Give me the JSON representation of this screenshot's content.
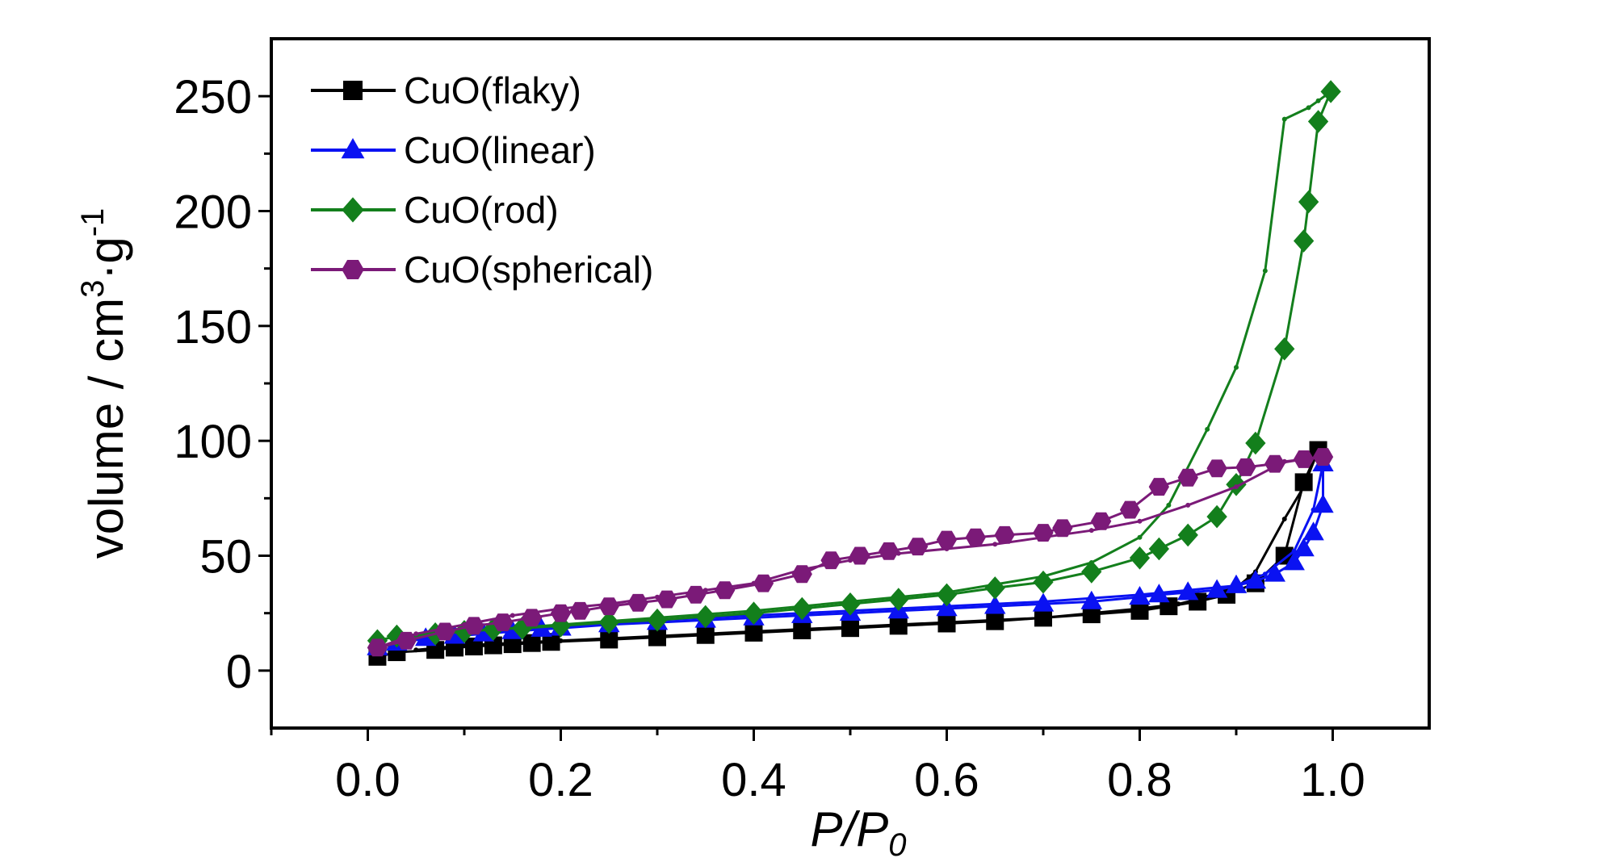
{
  "chart_data": {
    "type": "line",
    "title": "",
    "xlabel": "P/P",
    "xlabel_sub": "0",
    "ylabel": "volume / cm",
    "ylabel_sup1": "3",
    "ylabel_mid": "·g",
    "ylabel_sup2": "-1",
    "xlim": [
      -0.1,
      1.1
    ],
    "ylim": [
      -25,
      275
    ],
    "x_ticks": [
      "0.0",
      "0.2",
      "0.4",
      "0.6",
      "0.8",
      "1.0"
    ],
    "y_ticks": [
      "0",
      "50",
      "100",
      "150",
      "200",
      "250"
    ],
    "grid": false,
    "legend_position": "top-left",
    "series": [
      {
        "name": "CuO(flaky)",
        "color": "#000000",
        "marker": "square",
        "adsorption_x": [
          0.01,
          0.03,
          0.07,
          0.09,
          0.11,
          0.13,
          0.15,
          0.17,
          0.19,
          0.25,
          0.3,
          0.35,
          0.4,
          0.45,
          0.5,
          0.55,
          0.6,
          0.65,
          0.7,
          0.75,
          0.8,
          0.83,
          0.86,
          0.89,
          0.92,
          0.95,
          0.97,
          0.985
        ],
        "adsorption_y": [
          6,
          8,
          9,
          10,
          10.5,
          11,
          11.5,
          12,
          12.5,
          13.5,
          14.5,
          15.5,
          16.5,
          17.5,
          18.5,
          19.5,
          20.5,
          21.5,
          23,
          24.5,
          26,
          28,
          30,
          33,
          38,
          50,
          82,
          96
        ],
        "desorption_x": [
          0.985,
          0.97,
          0.95,
          0.92,
          0.9,
          0.87,
          0.84,
          0.8,
          0.75,
          0.7,
          0.6,
          0.5,
          0.4,
          0.3,
          0.2,
          0.1,
          0.05
        ],
        "desorption_y": [
          96,
          80,
          66,
          43,
          36,
          32,
          29,
          27,
          25,
          23,
          21,
          19,
          17,
          15,
          13,
          11,
          9
        ]
      },
      {
        "name": "CuO(linear)",
        "color": "#0a12f2",
        "marker": "triangle",
        "adsorption_x": [
          0.01,
          0.03,
          0.06,
          0.09,
          0.12,
          0.15,
          0.18,
          0.2,
          0.25,
          0.3,
          0.35,
          0.4,
          0.45,
          0.5,
          0.55,
          0.6,
          0.65,
          0.7,
          0.75,
          0.8,
          0.82,
          0.85,
          0.88,
          0.9,
          0.92,
          0.94,
          0.96,
          0.97,
          0.98,
          0.99,
          0.99
        ],
        "adsorption_y": [
          10,
          12,
          14,
          15,
          16,
          17,
          18,
          18.5,
          20,
          21,
          22,
          23,
          24,
          25,
          26,
          27,
          28,
          29,
          30,
          32,
          33,
          34,
          35,
          37,
          39,
          42,
          47,
          53,
          60,
          72,
          90
        ],
        "desorption_x": [
          0.99,
          0.98,
          0.96,
          0.93,
          0.9,
          0.85,
          0.8,
          0.7,
          0.6,
          0.5,
          0.4,
          0.3,
          0.2,
          0.1,
          0.05
        ],
        "desorption_y": [
          90,
          70,
          52,
          42,
          37,
          35,
          33,
          30,
          28,
          26,
          24,
          22,
          19,
          16,
          14
        ]
      },
      {
        "name": "CuO(rod)",
        "color": "#137f1c",
        "marker": "diamond",
        "adsorption_x": [
          0.01,
          0.03,
          0.07,
          0.1,
          0.13,
          0.16,
          0.2,
          0.25,
          0.3,
          0.35,
          0.4,
          0.45,
          0.5,
          0.55,
          0.6,
          0.65,
          0.7,
          0.75,
          0.8,
          0.82,
          0.85,
          0.88,
          0.9,
          0.92,
          0.95,
          0.97,
          0.975,
          0.985,
          0.998
        ],
        "adsorption_y": [
          13,
          15,
          16,
          17,
          18,
          18.5,
          19.5,
          21,
          22,
          23.5,
          25,
          27,
          29,
          31,
          33,
          36,
          38.5,
          43,
          49,
          53,
          59,
          67,
          81,
          99,
          140,
          187,
          204,
          239,
          252
        ],
        "desorption_x": [
          0.998,
          0.985,
          0.975,
          0.95,
          0.93,
          0.9,
          0.87,
          0.83,
          0.8,
          0.75,
          0.7,
          0.6,
          0.5,
          0.4,
          0.3,
          0.2,
          0.1,
          0.05
        ],
        "desorption_y": [
          252,
          248,
          245,
          240,
          174,
          132,
          105,
          72,
          58,
          47,
          41,
          34,
          30,
          26,
          23,
          20,
          17,
          15
        ]
      },
      {
        "name": "CuO(spherical)",
        "color": "#7b1a78",
        "marker": "hexagon",
        "adsorption_x": [
          0.01,
          0.04,
          0.08,
          0.11,
          0.14,
          0.17,
          0.2,
          0.22,
          0.25,
          0.28,
          0.31,
          0.34,
          0.37,
          0.41,
          0.45,
          0.48,
          0.51,
          0.54,
          0.57,
          0.6,
          0.63,
          0.66,
          0.7,
          0.72,
          0.76,
          0.79,
          0.82,
          0.85,
          0.88,
          0.91,
          0.94,
          0.97,
          0.99
        ],
        "adsorption_y": [
          10,
          13,
          17,
          19.5,
          21,
          23,
          25,
          26,
          28,
          29.5,
          31,
          33,
          35,
          38,
          42,
          48,
          50,
          52,
          54,
          57,
          58,
          59,
          60,
          62,
          65,
          70,
          80,
          84,
          88,
          88.5,
          90,
          92,
          93
        ],
        "desorption_x": [
          0.99,
          0.95,
          0.9,
          0.85,
          0.8,
          0.75,
          0.7,
          0.65,
          0.6,
          0.55,
          0.5,
          0.45,
          0.4,
          0.35,
          0.3,
          0.25,
          0.2,
          0.15,
          0.1,
          0.05,
          0.01
        ],
        "desorption_y": [
          93,
          91,
          80,
          72,
          65,
          61,
          58,
          55,
          53,
          51,
          48,
          44,
          38,
          35,
          32,
          29,
          27,
          24,
          20,
          16,
          10
        ]
      }
    ]
  }
}
